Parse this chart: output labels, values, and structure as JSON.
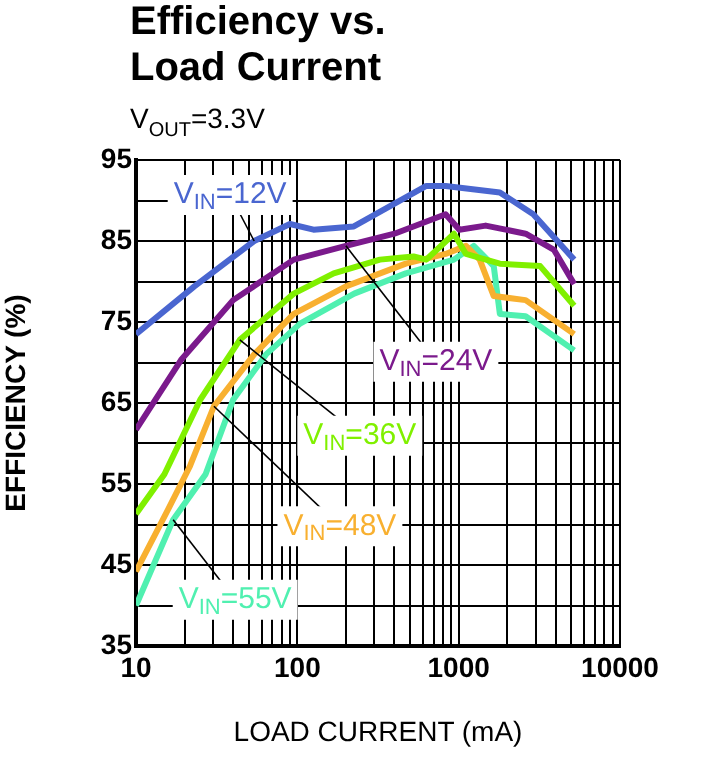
{
  "chart_data": {
    "type": "line",
    "title": "Efficiency vs.\nLoad Current",
    "subtitle": "V$_{OUT}$=3.3V",
    "xlabel": "LOAD CURRENT (mA)",
    "ylabel": "EFFICIENCY (%)",
    "log": "x",
    "grid": true,
    "legend": false,
    "marker": "none",
    "line_style": "solid",
    "xlim": [
      10,
      10000
    ],
    "ylim": [
      35,
      95
    ],
    "xticks": [
      10,
      {
        "value": 20,
        "label": null
      },
      {
        "value": 30,
        "label": null
      },
      {
        "value": 40,
        "label": null
      },
      {
        "value": 50,
        "label": null
      },
      {
        "value": 60,
        "label": null
      },
      {
        "value": 70,
        "label": null
      },
      {
        "value": 80,
        "label": null
      },
      {
        "value": 90,
        "label": null
      },
      100,
      {
        "value": 200,
        "label": null
      },
      {
        "value": 300,
        "label": null
      },
      {
        "value": 400,
        "label": null
      },
      {
        "value": 500,
        "label": null
      },
      {
        "value": 600,
        "label": null
      },
      {
        "value": 700,
        "label": null
      },
      {
        "value": 800,
        "label": null
      },
      {
        "value": 900,
        "label": null
      },
      1000,
      {
        "value": 2000,
        "label": null
      },
      {
        "value": 3000,
        "label": null
      },
      {
        "value": 4000,
        "label": null
      },
      {
        "value": 5000,
        "label": null
      },
      {
        "value": 6000,
        "label": null
      },
      {
        "value": 7000,
        "label": null
      },
      {
        "value": 8000,
        "label": null
      },
      {
        "value": 9000,
        "label": null
      },
      10000
    ],
    "yticks": [
      35,
      {
        "value": 40,
        "label": null
      },
      45,
      {
        "value": 50,
        "label": null
      },
      55,
      {
        "value": 60,
        "label": null
      },
      65,
      {
        "value": 70,
        "label": null
      },
      75,
      {
        "value": 80,
        "label": null
      },
      85,
      {
        "value": 90,
        "label": null
      },
      95
    ],
    "series": [
      {
        "name": "V$_{IN}$=12V",
        "color": "#4a66d0",
        "x": [
          10,
          23,
          54,
          90,
          126,
          224,
          630,
          830,
          1800,
          2900,
          5200
        ],
        "values": [
          73.5,
          79.4,
          85,
          87.1,
          86.4,
          86.8,
          91.8,
          91.8,
          91,
          88.3,
          82.7
        ]
      },
      {
        "name": "V$_{IN}$=24V",
        "color": "#7b1a8c",
        "x": [
          10,
          19,
          40,
          95,
          200,
          400,
          830,
          1010,
          1470,
          2600,
          3900,
          5200
        ],
        "values": [
          61.7,
          70.3,
          77.7,
          82.7,
          84.4,
          85.9,
          88.3,
          86.4,
          86.9,
          85.9,
          83.9,
          79.7
        ]
      },
      {
        "name": "V$_{IN}$=36V",
        "color": "#80f000",
        "x": [
          10,
          15,
          25,
          44,
          95,
          168,
          325,
          525,
          630,
          935,
          1110,
          1800,
          3200,
          5200
        ],
        "values": [
          51.3,
          56.2,
          65.4,
          72.8,
          78.5,
          81,
          82.7,
          83.1,
          82.7,
          85.9,
          83.4,
          82.2,
          81.9,
          77
        ]
      },
      {
        "name": "V$_{IN}$=48V",
        "color": "#f8b030",
        "x": [
          10,
          15.3,
          21.6,
          30.4,
          54,
          95,
          200,
          470,
          830,
          1110,
          1350,
          1650,
          2600,
          5200
        ],
        "values": [
          44.2,
          51.3,
          57.2,
          64.6,
          71,
          76,
          79.4,
          82.2,
          83.4,
          84.4,
          82.7,
          78.2,
          77.7,
          73.5
        ]
      },
      {
        "name": "V$_{IN}$=55V",
        "color": "#50f0b0",
        "x": [
          10,
          17,
          27,
          40,
          64,
          104,
          225,
          470,
          935,
          1240,
          1650,
          1800,
          2600,
          5200
        ],
        "values": [
          40,
          50.6,
          56.2,
          65.4,
          71,
          74.8,
          78.5,
          81,
          82.7,
          84.4,
          81.9,
          76,
          75.7,
          71.5
        ]
      }
    ]
  }
}
